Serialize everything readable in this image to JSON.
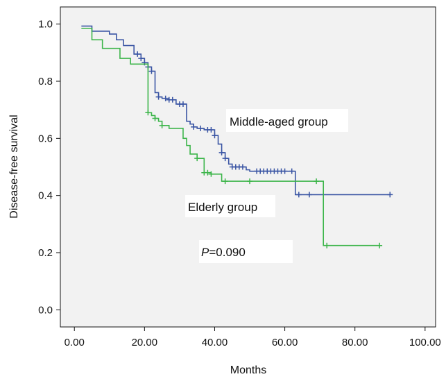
{
  "chart_data": {
    "type": "line",
    "subtype": "kaplan-meier step",
    "xlabel": "Months",
    "ylabel": "Disease-free survival",
    "xlim": [
      -4,
      103
    ],
    "ylim": [
      -0.06,
      1.06
    ],
    "x_ticks": [
      "0.00",
      "20.00",
      "40.00",
      "60.00",
      "80.00",
      "100.00"
    ],
    "x_tick_values": [
      0,
      20,
      40,
      60,
      80,
      100
    ],
    "y_ticks": [
      "0.0",
      "0.2",
      "0.4",
      "0.6",
      "0.8",
      "1.0"
    ],
    "y_tick_values": [
      0,
      0.2,
      0.4,
      0.6,
      0.8,
      1.0
    ],
    "grid": false,
    "series": [
      {
        "name": "Middle-aged group",
        "color": "#3a55a4",
        "x": [
          2,
          5,
          10,
          12,
          14,
          17,
          19,
          20,
          21,
          22,
          23,
          24,
          25,
          27,
          29,
          32,
          33,
          34,
          35,
          37,
          40,
          41,
          42,
          43,
          44,
          45,
          47,
          49,
          50,
          56,
          63,
          90
        ],
        "y": [
          0.993,
          0.975,
          0.965,
          0.945,
          0.925,
          0.895,
          0.88,
          0.865,
          0.85,
          0.835,
          0.76,
          0.745,
          0.74,
          0.735,
          0.72,
          0.66,
          0.65,
          0.64,
          0.635,
          0.63,
          0.61,
          0.58,
          0.55,
          0.53,
          0.51,
          0.5,
          0.5,
          0.49,
          0.485,
          0.485,
          0.403,
          0.403
        ],
        "censored_x": [
          18,
          19,
          20,
          21,
          22,
          24,
          26,
          27,
          28,
          30,
          31,
          34,
          36,
          38,
          39,
          40,
          42,
          43,
          45,
          46,
          47,
          48,
          52,
          53,
          54,
          55,
          56,
          57,
          58,
          59,
          60,
          62,
          64,
          67,
          90
        ]
      },
      {
        "name": "Elderly group",
        "color": "#3cb54a",
        "x": [
          2,
          5,
          8,
          13,
          16,
          21,
          22,
          23,
          24,
          25,
          27,
          31,
          32,
          33,
          35,
          37,
          39,
          42,
          71,
          87
        ],
        "y": [
          0.985,
          0.945,
          0.915,
          0.88,
          0.86,
          0.69,
          0.68,
          0.67,
          0.66,
          0.645,
          0.635,
          0.6,
          0.575,
          0.545,
          0.53,
          0.48,
          0.475,
          0.45,
          0.225,
          0.225
        ],
        "censored_x": [
          21,
          23,
          25,
          35,
          37,
          38,
          39,
          43,
          50,
          69,
          72,
          87
        ]
      }
    ],
    "annotations": {
      "middle_label": "Middle-aged group",
      "elderly_label": "Elderly group",
      "p_prefix": "P",
      "p_value": "=0.090"
    }
  }
}
